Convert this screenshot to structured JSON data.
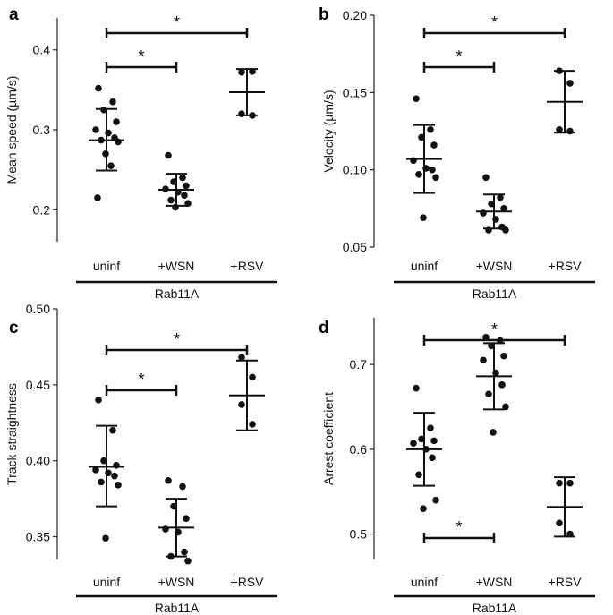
{
  "chart_data": [
    {
      "type": "scatter",
      "panel": "a",
      "ylabel": "Mean speed (µm/s)",
      "ylim": [
        0.16,
        0.44
      ],
      "yticks": [
        0.2,
        0.3,
        0.4
      ],
      "yticklabels": [
        "0.2",
        "0.3",
        "0.4"
      ],
      "categories": [
        "uninf",
        "+WSN",
        "+RSV"
      ],
      "group_label": "Rab11A",
      "points": [
        [
          0.352,
          0.335,
          0.325,
          0.31,
          0.3,
          0.296,
          0.29,
          0.287,
          0.285,
          0.27,
          0.255,
          0.215
        ],
        [
          0.268,
          0.24,
          0.235,
          0.23,
          0.226,
          0.222,
          0.218,
          0.212,
          0.208,
          0.203
        ],
        [
          0.372,
          0.373,
          0.32,
          0.318
        ]
      ],
      "mean": [
        0.287,
        0.225,
        0.347
      ],
      "sd_lower": [
        0.249,
        0.205,
        0.318
      ],
      "sd_upper": [
        0.326,
        0.245,
        0.376
      ],
      "significance": [
        {
          "from": "uninf",
          "to": "+WSN",
          "label": "*"
        },
        {
          "from": "uninf",
          "to": "+RSV",
          "label": "*"
        }
      ]
    },
    {
      "type": "scatter",
      "panel": "b",
      "ylabel": "Velocity (µm/s)",
      "ylim": [
        0.05,
        0.2
      ],
      "yticks": [
        0.05,
        0.1,
        0.15,
        0.2
      ],
      "yticklabels": [
        "0.05",
        "0.10",
        "0.15",
        "0.20"
      ],
      "categories": [
        "uninf",
        "+WSN",
        "+RSV"
      ],
      "group_label": "Rab11A",
      "points": [
        [
          0.146,
          0.126,
          0.121,
          0.116,
          0.106,
          0.101,
          0.1,
          0.097,
          0.095,
          0.069
        ],
        [
          0.095,
          0.082,
          0.078,
          0.075,
          0.072,
          0.068,
          0.063,
          0.061,
          0.061
        ],
        [
          0.164,
          0.156,
          0.126,
          0.125
        ]
      ],
      "mean": [
        0.107,
        0.073,
        0.144
      ],
      "sd_lower": [
        0.085,
        0.062,
        0.124
      ],
      "sd_upper": [
        0.129,
        0.084,
        0.164
      ],
      "significance": [
        {
          "from": "uninf",
          "to": "+WSN",
          "label": "*"
        },
        {
          "from": "uninf",
          "to": "+RSV",
          "label": "*"
        }
      ]
    },
    {
      "type": "scatter",
      "panel": "c",
      "ylabel": "Track straightness",
      "ylim": [
        0.335,
        0.5
      ],
      "yticks": [
        0.35,
        0.4,
        0.45,
        0.5
      ],
      "yticklabels": [
        "0.35",
        "0.40",
        "0.45",
        "0.50"
      ],
      "categories": [
        "uninf",
        "+WSN",
        "+RSV"
      ],
      "group_label": "Rab11A",
      "points": [
        [
          0.44,
          0.42,
          0.4,
          0.397,
          0.394,
          0.392,
          0.39,
          0.386,
          0.384,
          0.349
        ],
        [
          0.387,
          0.383,
          0.37,
          0.362,
          0.355,
          0.353,
          0.34,
          0.337,
          0.334
        ],
        [
          0.468,
          0.455,
          0.437,
          0.424
        ]
      ],
      "mean": [
        0.396,
        0.356,
        0.443
      ],
      "sd_lower": [
        0.37,
        0.337,
        0.42
      ],
      "sd_upper": [
        0.423,
        0.375,
        0.466
      ],
      "significance": [
        {
          "from": "uninf",
          "to": "+WSN",
          "label": "*"
        },
        {
          "from": "uninf",
          "to": "+RSV",
          "label": "*"
        }
      ]
    },
    {
      "type": "scatter",
      "panel": "d",
      "ylabel": "Arrest coefficient",
      "ylim": [
        0.47,
        0.755
      ],
      "yticks": [
        0.5,
        0.6,
        0.7
      ],
      "yticklabels": [
        "0.5",
        "0.6",
        "0.7"
      ],
      "categories": [
        "uninf",
        "+WSN",
        "+RSV"
      ],
      "group_label": "Rab11A",
      "points": [
        [
          0.672,
          0.625,
          0.612,
          0.61,
          0.607,
          0.6,
          0.59,
          0.57,
          0.54,
          0.53
        ],
        [
          0.732,
          0.728,
          0.722,
          0.71,
          0.705,
          0.69,
          0.676,
          0.665,
          0.65,
          0.62
        ],
        [
          0.56,
          0.56,
          0.513,
          0.5
        ]
      ],
      "mean": [
        0.6,
        0.686,
        0.532
      ],
      "sd_lower": [
        0.557,
        0.647,
        0.497
      ],
      "sd_upper": [
        0.643,
        0.725,
        0.567
      ],
      "significance": [
        {
          "from": "uninf",
          "to": "+RSV",
          "label": "*"
        },
        {
          "from": "uninf",
          "to": "+WSN",
          "label": "*",
          "placement": "below"
        }
      ]
    }
  ]
}
